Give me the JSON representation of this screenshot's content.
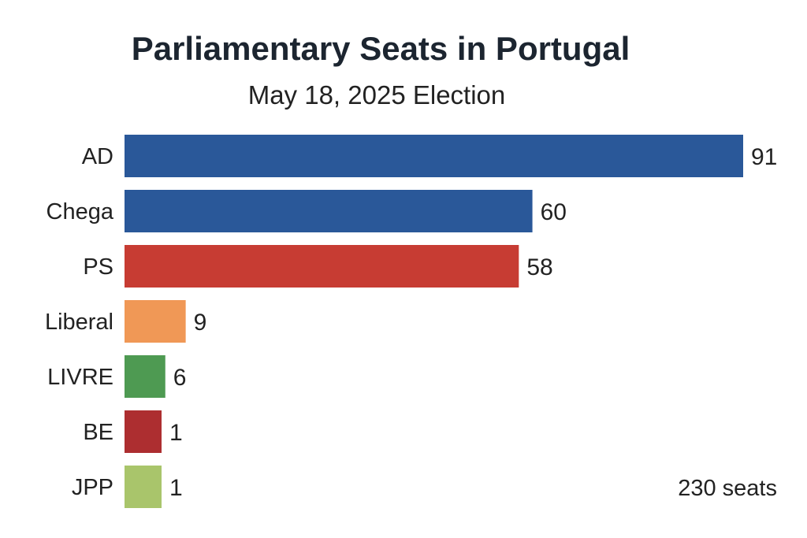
{
  "chart_data": {
    "type": "bar",
    "orientation": "horizontal",
    "title": "Parliamentary Seats in Portugal",
    "subtitle": "May 18, 2025 Election",
    "categories": [
      "AD",
      "Chega",
      "PS",
      "Liberal",
      "LIVRE",
      "BE",
      "JPP"
    ],
    "values": [
      91,
      60,
      58,
      9,
      6,
      1,
      1
    ],
    "colors": [
      "#2a5899",
      "#2a5899",
      "#c73c33",
      "#f09856",
      "#4e9a52",
      "#ad2e30",
      "#a9c56b"
    ],
    "data_labels": [
      "91",
      "60",
      "58",
      "9",
      "6",
      "1",
      "1"
    ],
    "annotation": "230 seats",
    "xlabel": "",
    "ylabel": "",
    "grid": false,
    "legend": "none"
  }
}
